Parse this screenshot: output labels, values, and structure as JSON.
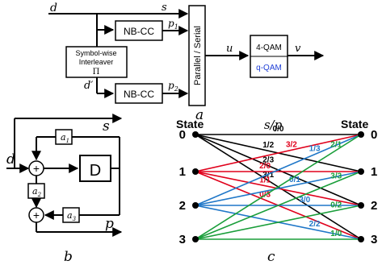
{
  "panel_a": {
    "caption": "a",
    "input_d": "d",
    "input_s": "s",
    "input_p1": "p",
    "input_p1_sub": "1",
    "input_p2": "p",
    "input_p2_sub": "2",
    "input_dprime": "d′",
    "nbcc_top": "NB-CC",
    "nbcc_bottom": "NB-CC",
    "interleaver_line1": "Symbol-wise",
    "interleaver_line2": "Interleaver",
    "interleaver_line3": "Π",
    "ps_label": "Parallel / Serial",
    "u": "u",
    "v": "v",
    "qam4": "4-QAM",
    "qam_q": "q-QAM",
    "qam_q_color": "#1f3fd6"
  },
  "panel_b": {
    "caption": "b",
    "input_d": "d",
    "out_s": "s",
    "out_p": "p",
    "a1": "a",
    "a1_sub": "1",
    "a2": "a",
    "a2_sub": "2",
    "a3": "a",
    "a3_sub": "3",
    "delay": "D",
    "plus": "+"
  },
  "panel_c": {
    "caption": "c",
    "header": "s/p",
    "state_left": "State",
    "state_right": "State",
    "states": [
      "0",
      "1",
      "2",
      "3"
    ],
    "branches": [
      {
        "from": 0,
        "to": 0,
        "label": "0/0",
        "color": "#000000"
      },
      {
        "from": 0,
        "to": 1,
        "label": "1/2",
        "color": "#000000"
      },
      {
        "from": 0,
        "to": 2,
        "label": "2/3",
        "color": "#000000"
      },
      {
        "from": 0,
        "to": 3,
        "label": "3/1",
        "color": "#000000"
      },
      {
        "from": 1,
        "to": 0,
        "label": "3/2",
        "color": "#e0001b"
      },
      {
        "from": 1,
        "to": 1,
        "label": "2/0",
        "color": "#e0001b"
      },
      {
        "from": 1,
        "to": 2,
        "label": "1/1",
        "color": "#e0001b"
      },
      {
        "from": 1,
        "to": 3,
        "label": "0/3",
        "color": "#e0001b"
      },
      {
        "from": 2,
        "to": 0,
        "label": "1/3",
        "color": "#1f77c8"
      },
      {
        "from": 2,
        "to": 1,
        "label": "0/1",
        "color": "#1f77c8"
      },
      {
        "from": 2,
        "to": 2,
        "label": "3/0",
        "color": "#1f77c8"
      },
      {
        "from": 2,
        "to": 3,
        "label": "2/2",
        "color": "#1f77c8"
      },
      {
        "from": 3,
        "to": 0,
        "label": "2/1",
        "color": "#1a9e3a"
      },
      {
        "from": 3,
        "to": 1,
        "label": "3/3",
        "color": "#1a9e3a"
      },
      {
        "from": 3,
        "to": 2,
        "label": "0/2",
        "color": "#1a9e3a"
      },
      {
        "from": 3,
        "to": 3,
        "label": "1/0",
        "color": "#1a9e3a"
      }
    ]
  }
}
